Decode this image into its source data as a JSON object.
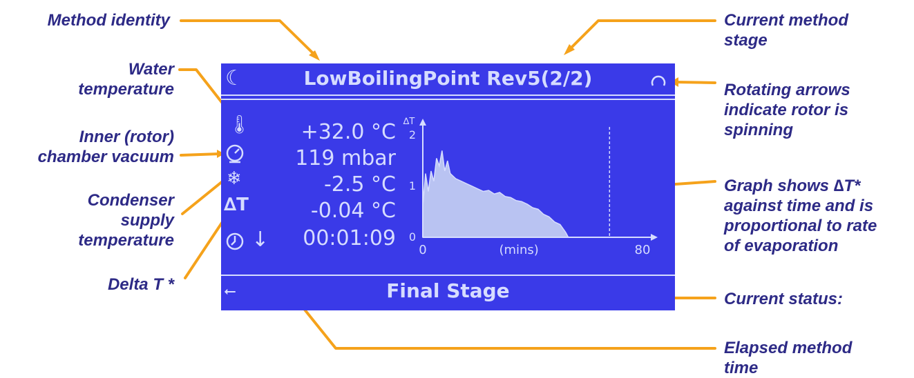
{
  "annotations": {
    "method_identity": "Method identity",
    "water_temperature": "Water\ntemperature",
    "inner_vacuum": "Inner (rotor)\nchamber vacuum",
    "condenser": "Condenser\nsupply\ntemperature",
    "delta_t": "Delta T *",
    "current_stage": "Current method\nstage",
    "rotating_arrows": "Rotating arrows\nindicate rotor is\nspinning",
    "graph_shows": "Graph shows  ∆T*\nagainst time and is\nproportional to rate\nof evaporation",
    "current_status": "Current status:",
    "elapsed_time": "Elapsed method\ntime"
  },
  "screen": {
    "title": "LowBoilingPoint Rev5(2/2)",
    "readings": {
      "water_temp": "+32.0 °C",
      "vacuum": "119 mbar",
      "condenser_temp": "-2.5 °C",
      "delta_t": "-0.04 °C",
      "elapsed": "00:01:09"
    },
    "delta_t_glyph": "∆T",
    "status": "Final Stage"
  },
  "colors": {
    "screen_bg": "#3a3ae8",
    "screen_fg": "#d6dcff",
    "label": "#2d2a86",
    "leader": "#f5a21b"
  },
  "chart_data": {
    "type": "area",
    "ylabel": "∆T",
    "xlabel": "(mins)",
    "x_ticks": [
      "0",
      "80"
    ],
    "y_ticks": [
      "0",
      "1",
      "2"
    ],
    "xlim": [
      0,
      80
    ],
    "ylim": [
      0,
      2.3
    ],
    "marker_x": 68,
    "x": [
      0,
      1,
      2,
      3,
      4,
      5,
      6,
      7,
      8,
      9,
      10,
      12,
      14,
      16,
      18,
      20,
      22,
      24,
      26,
      28,
      30,
      32,
      34,
      36,
      38,
      40,
      42,
      44,
      46,
      48,
      50,
      52,
      53
    ],
    "y": [
      0.6,
      1.25,
      0.9,
      1.3,
      1.1,
      1.55,
      1.4,
      1.7,
      1.3,
      1.5,
      1.25,
      1.15,
      1.1,
      1.05,
      1.0,
      0.95,
      0.9,
      0.92,
      0.85,
      0.88,
      0.8,
      0.78,
      0.72,
      0.7,
      0.65,
      0.58,
      0.55,
      0.45,
      0.4,
      0.3,
      0.25,
      0.1,
      0
    ]
  }
}
